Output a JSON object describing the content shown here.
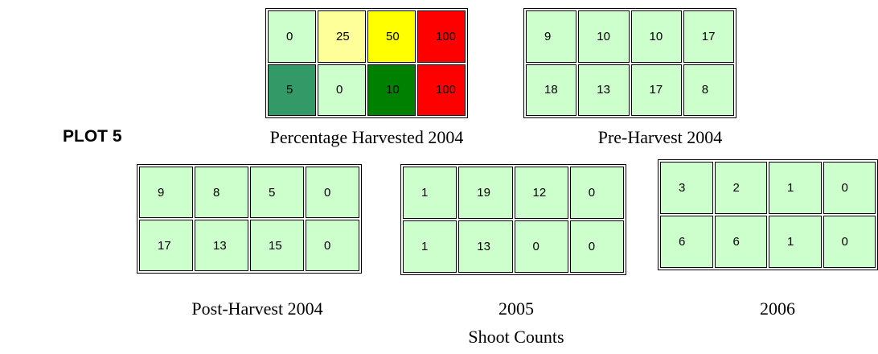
{
  "title": "PLOT 5",
  "footer": "Shoot Counts",
  "grids": [
    {
      "caption": "Percentage Harvested 2004",
      "cells": [
        [
          0,
          25,
          50,
          100
        ],
        [
          5,
          0,
          10,
          100
        ]
      ],
      "colors": [
        [
          "#ccffcc",
          "#ffff99",
          "#ffff00",
          "#ff0000"
        ],
        [
          "#339966",
          "#ccffcc",
          "#008000",
          "#ff0000"
        ]
      ]
    },
    {
      "caption": "Pre-Harvest 2004",
      "cells": [
        [
          9,
          10,
          10,
          17
        ],
        [
          18,
          13,
          17,
          8
        ]
      ],
      "color": "#ccffcc"
    },
    {
      "caption": "Post-Harvest 2004",
      "cells": [
        [
          9,
          8,
          5,
          0
        ],
        [
          17,
          13,
          15,
          0
        ]
      ],
      "color": "#ccffcc"
    },
    {
      "caption": "2005",
      "cells": [
        [
          1,
          19,
          12,
          0
        ],
        [
          1,
          13,
          0,
          0
        ]
      ],
      "color": "#ccffcc"
    },
    {
      "caption": "2006",
      "cells": [
        [
          3,
          2,
          1,
          0
        ],
        [
          6,
          6,
          1,
          0
        ]
      ],
      "color": "#ccffcc"
    }
  ]
}
